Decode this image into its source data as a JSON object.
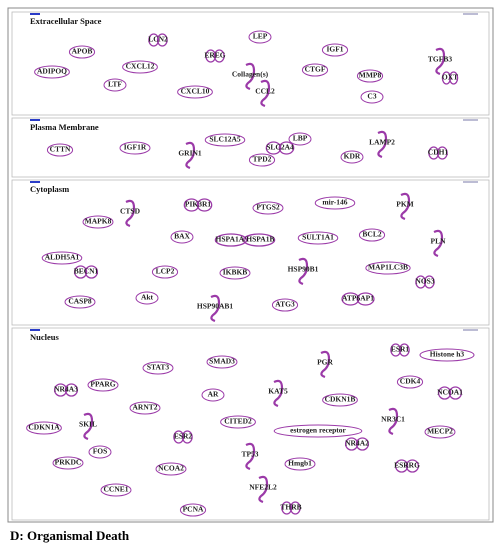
{
  "sections": [
    {
      "title": "Extracellular Space",
      "nodes": [
        "APOB",
        "LCN2",
        "LEP",
        "IGF1",
        "TGFB3",
        "CXCL12",
        "EREG",
        "ADIPOQ",
        "CTGF",
        "Collagen(s)",
        "MMP8",
        "OXT",
        "LTF",
        "CXCL10",
        "CCL2",
        "C3"
      ]
    },
    {
      "title": "Plasma Membrane",
      "nodes": [
        "CTTN",
        "IGF1R",
        "GRIN1",
        "SLC12A5",
        "SLC2A4",
        "LBP",
        "TPD2",
        "LAMP2",
        "KDR",
        "CDH1"
      ]
    },
    {
      "title": "Cytoplasm",
      "nodes": [
        "CTSD",
        "MAPK8",
        "PIK3R1",
        "PTGS2",
        "mir-146",
        "PKM",
        "BAX",
        "HSPA1A/HSPA1B",
        "SULT1A1",
        "BCL2",
        "PLN",
        "ALDH5A1",
        "BECN1",
        "LCP2",
        "IKBKB",
        "HSP90B1",
        "MAP1LC3B",
        "NOS3",
        "CASP8",
        "Akt",
        "HSP90AB1",
        "ATG3",
        "ATP6AP1"
      ]
    },
    {
      "title": "Nucleus",
      "nodes": [
        "ESR1",
        "Histone h3",
        "SMAD3",
        "PGR",
        "STAT3",
        "NR4A3",
        "PPARG",
        "AR",
        "KAT5",
        "CDK4",
        "NCOA1",
        "CDKN1B",
        "ARNT2",
        "SKIL",
        "CDKN1A",
        "ESR2",
        "CITED2",
        "estrogen receptor",
        "NR3C1",
        "MECP2",
        "NR4A2",
        "FOS",
        "NCOA2",
        "TP53",
        "Hmgb1",
        "ESRRG",
        "PRKDC",
        "CCNE1",
        "NFE2L2",
        "PCNA",
        "THRB"
      ]
    }
  ],
  "caption": "D: Organismal Death"
}
